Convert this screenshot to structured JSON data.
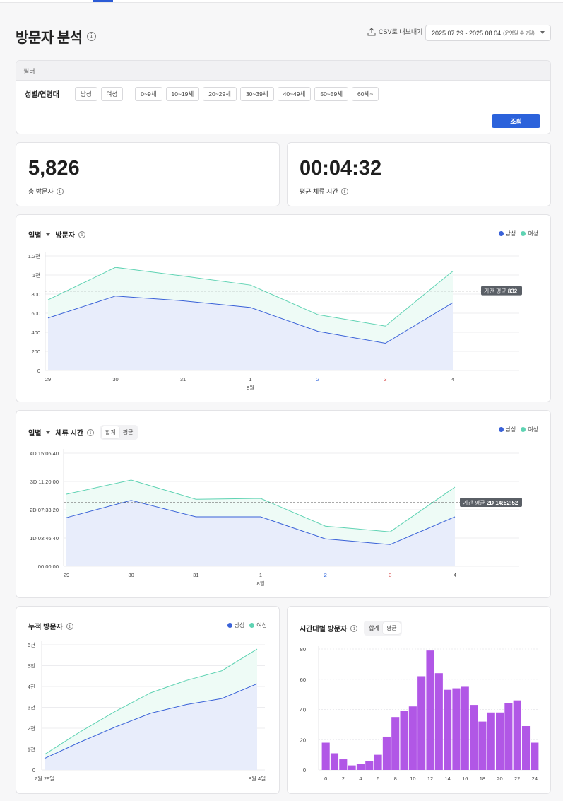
{
  "header": {
    "title": "방문자 분석",
    "csv_label": "CSV로 내보내기",
    "date_range": "2025.07.29 - 2025.08.04",
    "date_sub": "(운영일 수 7일)"
  },
  "filter": {
    "heading": "필터",
    "row_label": "성별/연령대",
    "gender": [
      "남성",
      "여성"
    ],
    "ages": [
      "0~9세",
      "10~19세",
      "20~29세",
      "30~39세",
      "40~49세",
      "50~59세",
      "60세~"
    ],
    "search_label": "조회"
  },
  "kpis": [
    {
      "value": "5,826",
      "label": "총 방문자"
    },
    {
      "value": "00:04:32",
      "label": "평균 체류 시간"
    }
  ],
  "legend": {
    "male": "남성",
    "female": "여성"
  },
  "colors": {
    "male": "#3a62d8",
    "female": "#5fd3b3",
    "male_fill": "#e8edfb",
    "female_fill": "#eefbf6",
    "bar": "#b157e6",
    "weekday_sat": "#2b62db",
    "weekday_sun": "#d94a4a"
  },
  "charts": {
    "daily_visitors": {
      "period": "일별",
      "metric": "방문자",
      "avg_label": "기간 평균",
      "avg_value": "832"
    },
    "daily_stay": {
      "period": "일별",
      "metric": "체류 시간",
      "seg": [
        "합계",
        "평균"
      ],
      "avg_label": "기간 평균",
      "avg_value": "2D 14:52:52"
    },
    "cumulative": {
      "title": "누적 방문자"
    },
    "hourly": {
      "title": "시간대별 방문자",
      "seg": [
        "합계",
        "평균"
      ]
    }
  },
  "chart_data": [
    {
      "type": "area",
      "categories": [
        "29",
        "30",
        "31",
        "1",
        "2",
        "3",
        "4"
      ],
      "month_label": "8월",
      "ylim": [
        0,
        1200
      ],
      "yticks": [
        0,
        200,
        400,
        600,
        800,
        1000,
        1200
      ],
      "ytick_labels": [
        "0",
        "200",
        "400",
        "600",
        "800",
        "1천",
        "1.2천"
      ],
      "series": [
        {
          "name": "남성",
          "values": [
            550,
            780,
            730,
            660,
            410,
            285,
            710
          ]
        },
        {
          "name": "여성",
          "values": [
            740,
            1080,
            990,
            895,
            585,
            465,
            1040
          ]
        }
      ],
      "average": 832
    },
    {
      "type": "area",
      "categories": [
        "29",
        "30",
        "31",
        "1",
        "2",
        "3",
        "4"
      ],
      "month_label": "8월",
      "ylim": [
        0,
        4
      ],
      "yticks": [
        0,
        1,
        2,
        3,
        4
      ],
      "ytick_labels": [
        "00:00:00",
        "1D 03:46:40",
        "2D 07:33:20",
        "3D 11:20:00",
        "4D 15:06:40"
      ],
      "series": [
        {
          "name": "남성",
          "values": [
            1.72,
            2.33,
            1.75,
            1.75,
            0.97,
            0.77,
            1.75
          ]
        },
        {
          "name": "여성",
          "values": [
            2.55,
            3.05,
            2.37,
            2.4,
            1.42,
            1.22,
            2.8
          ]
        }
      ],
      "average": 2.25
    },
    {
      "type": "area",
      "x": [
        "7월 29일",
        "",
        "",
        "",
        "",
        "",
        "8월 4일"
      ],
      "ylim": [
        0,
        6000
      ],
      "yticks": [
        0,
        1000,
        2000,
        3000,
        4000,
        5000,
        6000
      ],
      "ytick_labels": [
        "0",
        "1천",
        "2천",
        "3천",
        "4천",
        "5천",
        "6천"
      ],
      "series": [
        {
          "name": "남성",
          "values": [
            550,
            1330,
            2060,
            2720,
            3130,
            3420,
            4130
          ]
        },
        {
          "name": "여성",
          "values": [
            740,
            1820,
            2810,
            3700,
            4290,
            4755,
            5795
          ]
        }
      ]
    },
    {
      "type": "bar",
      "categories": [
        0,
        1,
        2,
        3,
        4,
        5,
        6,
        7,
        8,
        9,
        10,
        11,
        12,
        13,
        14,
        15,
        16,
        17,
        18,
        19,
        20,
        21,
        22,
        23,
        24
      ],
      "values": [
        18,
        11,
        7,
        3,
        4,
        6,
        10,
        22,
        35,
        39,
        42,
        62,
        79,
        64,
        53,
        54,
        55,
        43,
        32,
        38,
        38,
        44,
        46,
        29,
        18
      ],
      "xticks": [
        "0",
        "2",
        "4",
        "6",
        "8",
        "10",
        "12",
        "14",
        "16",
        "18",
        "20",
        "22",
        "24"
      ],
      "ylim": [
        0,
        80
      ],
      "yticks": [
        0,
        20,
        40,
        60,
        80
      ]
    }
  ]
}
